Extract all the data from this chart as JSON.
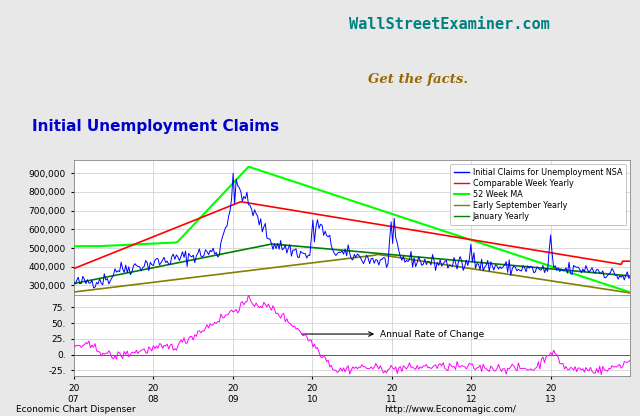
{
  "title": "Initial Unemployment Claims",
  "watermark_line1": "WallStreetExaminer.com",
  "watermark_line2": "Get the facts.",
  "top_ylabel_ticks": [
    300000,
    400000,
    500000,
    600000,
    700000,
    800000,
    900000
  ],
  "bottom_ylabel_ticks": [
    -25,
    0,
    25,
    50,
    75
  ],
  "xtick_labels": [
    "20\n07",
    "20\n08",
    "20\n09",
    "20\n10",
    "20\n11",
    "20\n12",
    "20\n13"
  ],
  "legend_entries": [
    "Initial Claims for Unemployment NSA",
    "Comparable Week Yearly",
    "52 Week MA",
    "Early September Yearly",
    "January Yearly"
  ],
  "line_colors": [
    "blue",
    "red",
    "lime",
    "#808000",
    "green"
  ],
  "footer_left": "Economic Chart Dispenser",
  "footer_right": "http://www.Economagic.com/",
  "annotation_annual": "Annual Rate of Change",
  "bg_color": "#e8e8e8",
  "plot_bg_color": "white",
  "grid_color": "#cccccc",
  "title_color": "#0000cc",
  "watermark_color1": "#008080",
  "watermark_color2": "#996600"
}
